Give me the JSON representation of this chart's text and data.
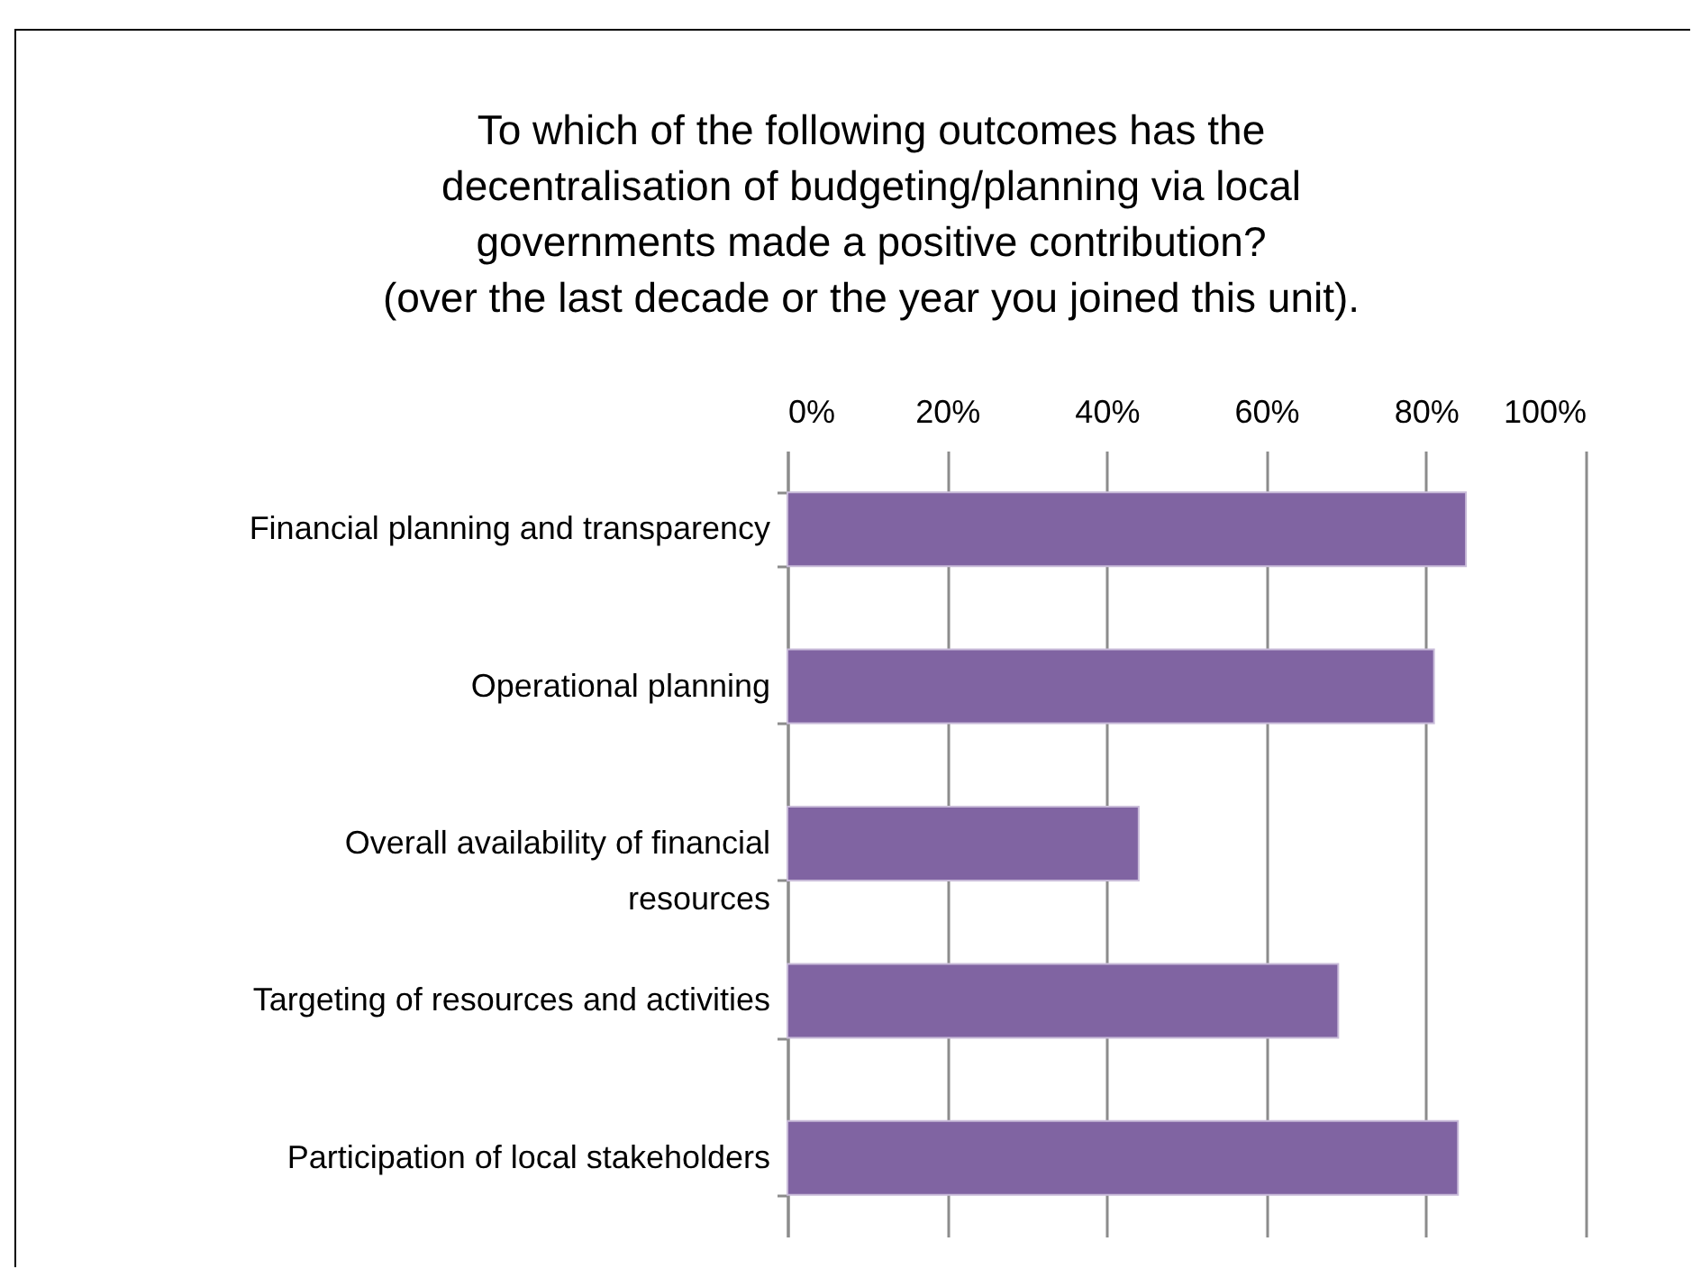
{
  "chart_data": {
    "type": "bar",
    "orientation": "horizontal",
    "title": "To which of the following outcomes has the decentralisation of budgeting/planning via local governments made a positive contribution?\n(over the last decade or the year you joined this unit).",
    "categories": [
      "Financial planning and transparency",
      "Operational planning",
      "Overall availability of financial resources",
      "Targeting of resources and activities",
      "Participation of local stakeholders"
    ],
    "values": [
      85,
      81,
      44,
      69,
      84
    ],
    "color": "#8064a2",
    "xlim": [
      0,
      100
    ],
    "xticks": [
      {
        "value": 0,
        "label": "0%"
      },
      {
        "value": 20,
        "label": "20%"
      },
      {
        "value": 40,
        "label": "40%"
      },
      {
        "value": 60,
        "label": "60%"
      },
      {
        "value": 80,
        "label": "80%"
      },
      {
        "value": 100,
        "label": "100%"
      }
    ],
    "grid": "x"
  }
}
